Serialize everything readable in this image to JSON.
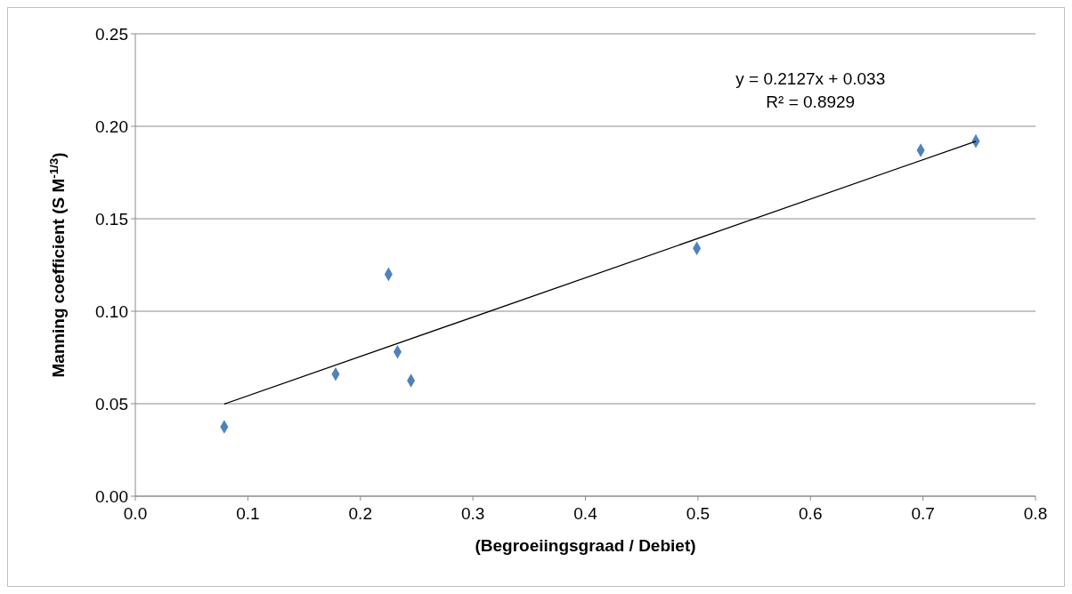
{
  "chart_data": {
    "type": "scatter",
    "xlabel": "(Begroeiingsgraad / Debiet)",
    "ylabel": "Manning coefficient  (S M$^{-1/3}$)",
    "xlim": [
      0,
      0.8
    ],
    "ylim": [
      0,
      0.25
    ],
    "xticks": [
      {
        "value": 0,
        "label": "0.0"
      },
      {
        "value": 0.1,
        "label": "0.1"
      },
      {
        "value": 0.2,
        "label": "0.2"
      },
      {
        "value": 0.3,
        "label": "0.3"
      },
      {
        "value": 0.4,
        "label": "0.4"
      },
      {
        "value": 0.5,
        "label": "0.5"
      },
      {
        "value": 0.6,
        "label": "0.6"
      },
      {
        "value": 0.7,
        "label": "0.7"
      },
      {
        "value": 0.8,
        "label": "0.8"
      }
    ],
    "yticks": [
      {
        "value": 0,
        "label": "0.00"
      },
      {
        "value": 0.05,
        "label": "0.05"
      },
      {
        "value": 0.1,
        "label": "0.10"
      },
      {
        "value": 0.15,
        "label": "0.15"
      },
      {
        "value": 0.2,
        "label": "0.20"
      },
      {
        "value": 0.25,
        "label": "0.25"
      }
    ],
    "grid": "y",
    "marker": "diamond",
    "series": [
      {
        "color": "#4f81bd",
        "x": [
          0.079,
          0.178,
          0.225,
          0.233,
          0.245,
          0.499,
          0.698,
          0.747
        ],
        "values": [
          0.0375,
          0.066,
          0.12,
          0.078,
          0.0625,
          0.134,
          0.187,
          0.192
        ]
      },
      {
        "type": "line",
        "color": "#000000",
        "marker": "none",
        "line_style": "solid",
        "x": [
          0.079,
          0.747
        ],
        "values": [
          0.0498,
          0.1919
        ]
      }
    ],
    "annotations": [
      "y = 0.2127x + 0.033",
      "R² = 0.8929"
    ]
  }
}
